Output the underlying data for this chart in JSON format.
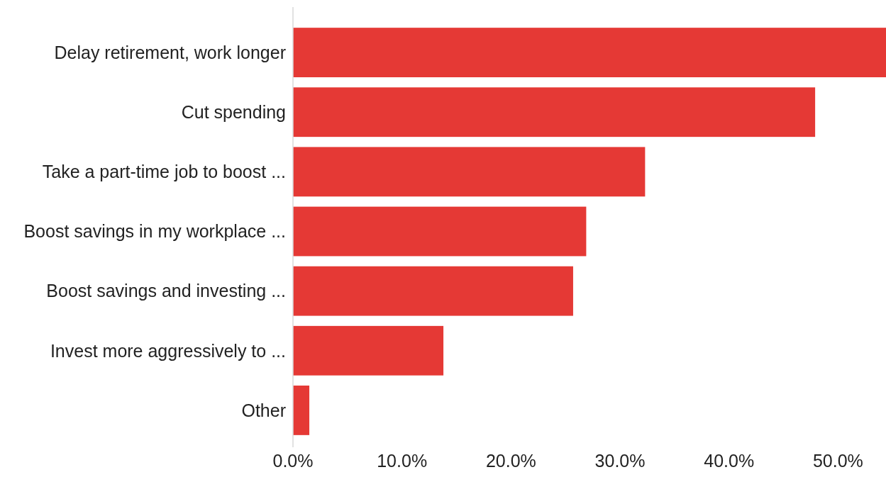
{
  "chart_data": {
    "type": "bar",
    "orientation": "horizontal",
    "categories": [
      "Delay retirement, work longer",
      "Cut spending",
      "Take a part-time job to boost ...",
      "Boost savings in my workplace ...",
      "Boost savings and investing ...",
      "Invest more aggressively to ...",
      "Other"
    ],
    "values": [
      54.4,
      47.9,
      32.3,
      26.9,
      25.7,
      13.8,
      1.5
    ],
    "color": "#e53935",
    "xlim": [
      0,
      54.4
    ],
    "xticks": [
      {
        "value": 0,
        "label": "0.0%"
      },
      {
        "value": 10,
        "label": "10.0%"
      },
      {
        "value": 20,
        "label": "20.0%"
      },
      {
        "value": 30,
        "label": "30.0%"
      },
      {
        "value": 40,
        "label": "40.0%"
      },
      {
        "value": 50,
        "label": "50.0%"
      }
    ],
    "grid": false
  }
}
